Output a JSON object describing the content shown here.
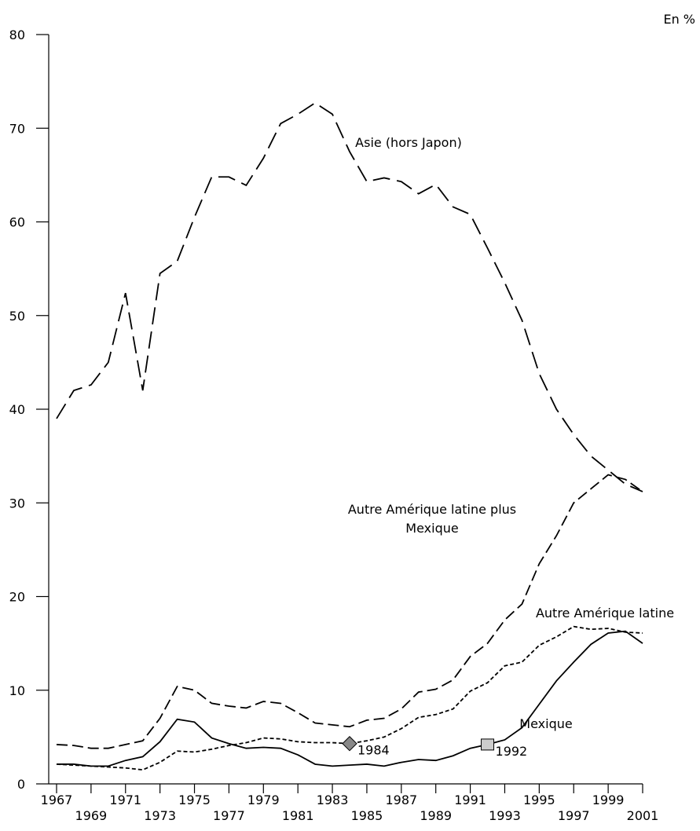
{
  "chart_data": {
    "type": "line",
    "unit": "En %",
    "x": [
      1967,
      1968,
      1969,
      1970,
      1971,
      1972,
      1973,
      1974,
      1975,
      1976,
      1977,
      1978,
      1979,
      1980,
      1981,
      1982,
      1983,
      1984,
      1985,
      1986,
      1987,
      1988,
      1989,
      1990,
      1991,
      1992,
      1993,
      1994,
      1995,
      1996,
      1997,
      1998,
      1999,
      2000,
      2001
    ],
    "xlim": [
      1967,
      2001
    ],
    "xticks": [
      1967,
      1969,
      1971,
      1973,
      1975,
      1977,
      1979,
      1981,
      1983,
      1985,
      1987,
      1989,
      1991,
      1993,
      1995,
      1997,
      1999,
      2001
    ],
    "ylim": [
      0,
      80
    ],
    "yticks": [
      0,
      10,
      20,
      30,
      40,
      50,
      60,
      70,
      80
    ],
    "grid": false,
    "series": [
      {
        "name": "Asie (hors Japon)",
        "color": "#000000",
        "style": "long-dash",
        "values": [
          39,
          42,
          42.6,
          45,
          52.4,
          42,
          54.5,
          55.8,
          60.5,
          64.8,
          64.8,
          63.9,
          66.8,
          70.5,
          71.5,
          72.7,
          71.5,
          67.5,
          64.3,
          64.7,
          64.3,
          63,
          64,
          61.6,
          60.8,
          57.2,
          53.5,
          49.5,
          43.8,
          40,
          37.3,
          35,
          33.5,
          32,
          31.2
        ]
      },
      {
        "name": "Autre Amérique latine plus Mexique",
        "color": "#000000",
        "style": "medium-dash",
        "values": [
          4.2,
          4.1,
          3.8,
          3.8,
          4.2,
          4.6,
          7,
          10.4,
          10,
          8.6,
          8.3,
          8.1,
          8.8,
          8.6,
          7.6,
          6.5,
          6.3,
          6.1,
          6.8,
          7,
          8,
          9.8,
          10.1,
          11.1,
          13.6,
          15,
          17.5,
          19.2,
          23.5,
          26.5,
          30,
          31.5,
          33,
          32.5,
          31.2
        ]
      },
      {
        "name": "Autre Amérique latine",
        "color": "#000000",
        "style": "short-dash",
        "values": [
          2.1,
          2,
          1.9,
          1.8,
          1.7,
          1.5,
          2.3,
          3.5,
          3.4,
          3.7,
          4.1,
          4.4,
          4.9,
          4.8,
          4.5,
          4.4,
          4.4,
          4.3,
          4.6,
          5,
          5.9,
          7.1,
          7.4,
          8,
          9.9,
          10.8,
          12.6,
          13,
          14.8,
          15.7,
          16.8,
          16.5,
          16.6,
          16.2,
          16.1
        ]
      },
      {
        "name": "Mexique",
        "color": "#000000",
        "style": "solid",
        "values": [
          2.1,
          2.1,
          1.9,
          1.9,
          2.5,
          2.9,
          4.5,
          6.9,
          6.6,
          4.9,
          4.3,
          3.8,
          3.9,
          3.8,
          3.1,
          2.1,
          1.9,
          2,
          2.1,
          1.9,
          2.3,
          2.6,
          2.5,
          3,
          3.8,
          4.2,
          4.7,
          6,
          8.5,
          11,
          13,
          14.9,
          16.1,
          16.3,
          15
        ]
      }
    ],
    "annotations": [
      {
        "text": "1984",
        "x": 1984,
        "y": 4.3,
        "marker": "diamond",
        "color": "#888888"
      },
      {
        "text": "1992",
        "x": 1992,
        "y": 4.2,
        "marker": "square",
        "color": "#cccccc"
      }
    ]
  }
}
